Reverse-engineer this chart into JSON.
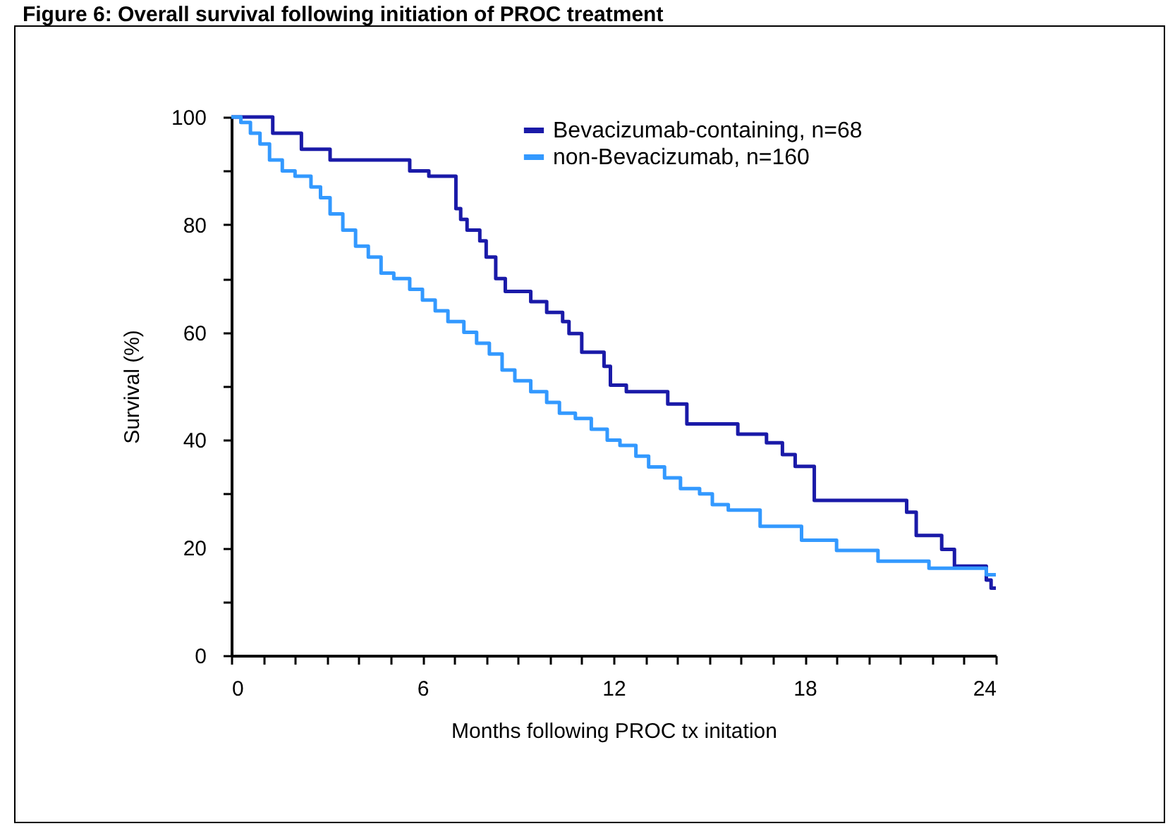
{
  "chart_data": {
    "type": "step",
    "title": "Figure 6: Overall survival following initiation of PROC treatment",
    "xlabel": "Months following PROC tx initation",
    "ylabel": "Survival (%)",
    "xlim": [
      0,
      24
    ],
    "ylim": [
      0,
      100
    ],
    "xticks": [
      0,
      {
        "value": 1,
        "label": null
      },
      {
        "value": 2,
        "label": null
      },
      {
        "value": 3,
        "label": null
      },
      {
        "value": 4,
        "label": null
      },
      {
        "value": 5,
        "label": null
      },
      6,
      {
        "value": 7,
        "label": null
      },
      {
        "value": 8,
        "label": null
      },
      {
        "value": 9,
        "label": null
      },
      {
        "value": 10,
        "label": null
      },
      {
        "value": 11,
        "label": null
      },
      12,
      {
        "value": 13,
        "label": null
      },
      {
        "value": 14,
        "label": null
      },
      {
        "value": 15,
        "label": null
      },
      {
        "value": 16,
        "label": null
      },
      {
        "value": 17,
        "label": null
      },
      18,
      {
        "value": 19,
        "label": null
      },
      {
        "value": 20,
        "label": null
      },
      {
        "value": 21,
        "label": null
      },
      {
        "value": 22,
        "label": null
      },
      {
        "value": 23,
        "label": null
      },
      24
    ],
    "yticks": [
      0,
      {
        "value": 10,
        "label": null
      },
      20,
      {
        "value": 30,
        "label": null
      },
      40,
      {
        "value": 50,
        "label": null
      },
      60,
      {
        "value": 70,
        "label": null
      },
      80,
      {
        "value": 90,
        "label": null
      },
      100
    ],
    "grid": false,
    "legend": "top right",
    "line_style": "solid",
    "series": [
      {
        "name": "Bevacizumab-containing, n=68",
        "color": "#1a1aa8",
        "x": [
          0,
          1.3,
          2.2,
          3.1,
          5.6,
          6.2,
          7.05,
          7.2,
          7.4,
          7.8,
          8.0,
          8.3,
          8.6,
          9.4,
          9.9,
          10.4,
          10.6,
          11.0,
          11.7,
          11.9,
          12.4,
          13.7,
          14.3,
          15.9,
          16.8,
          17.3,
          17.7,
          18.3,
          21.2,
          21.5,
          22.3,
          22.7,
          23.7,
          23.85,
          24
        ],
        "values": [
          100,
          97,
          94,
          92,
          90,
          89,
          83,
          81,
          79,
          77,
          74,
          70,
          67.6,
          65.7,
          63.7,
          62,
          59.8,
          56.3,
          53.7,
          50.2,
          49,
          46.7,
          43,
          41.1,
          39.5,
          37.3,
          35.1,
          28.8,
          26.6,
          22.3,
          19.7,
          16.6,
          14,
          12.5,
          12.5
        ]
      },
      {
        "name": "non-Bevacizumab, n=160",
        "color": "#3399ff",
        "x": [
          0,
          0.3,
          0.6,
          0.9,
          1.2,
          1.6,
          2.0,
          2.5,
          2.8,
          3.1,
          3.5,
          3.9,
          4.3,
          4.7,
          5.1,
          5.6,
          6.0,
          6.4,
          6.8,
          7.3,
          7.7,
          8.1,
          8.5,
          8.9,
          9.4,
          9.9,
          10.3,
          10.8,
          11.3,
          11.8,
          12.2,
          12.7,
          13.1,
          13.6,
          14.1,
          14.7,
          15.1,
          15.6,
          16.6,
          17.9,
          19,
          20.3,
          21.9,
          23.7,
          24
        ],
        "values": [
          100,
          99,
          97,
          95,
          92,
          90,
          89,
          87,
          85,
          82,
          79,
          76,
          74,
          71,
          70,
          68,
          66,
          64,
          62,
          60,
          58,
          56,
          53,
          51,
          49,
          47,
          45,
          44,
          42,
          40,
          39,
          37,
          35,
          33,
          31,
          30,
          28,
          27,
          24,
          21.4,
          19.5,
          17.5,
          16.2,
          15,
          15
        ]
      }
    ]
  }
}
